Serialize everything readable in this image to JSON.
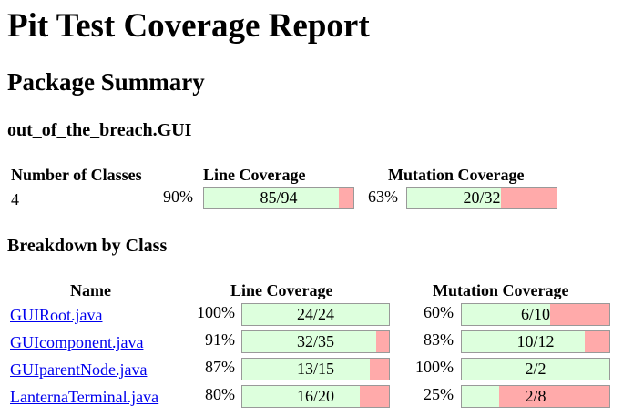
{
  "title": "Pit Test Coverage Report",
  "package_summary_heading": "Package Summary",
  "package_name": "out_of_the_breach.GUI",
  "summary": {
    "headers": {
      "classes": "Number of Classes",
      "line": "Line Coverage",
      "mutation": "Mutation Coverage"
    },
    "num_classes": "4",
    "line_pct": "90%",
    "line_label": "85/94",
    "line_fraction": 0.904,
    "mutation_pct": "63%",
    "mutation_label": "20/32",
    "mutation_fraction": 0.625
  },
  "breakdown_heading": "Breakdown by Class",
  "breakdown": {
    "headers": {
      "name": "Name",
      "line": "Line Coverage",
      "mutation": "Mutation Coverage"
    },
    "rows": [
      {
        "name": "GUIRoot.java",
        "line_pct": "100%",
        "line_label": "24/24",
        "line_fraction": 1.0,
        "mutation_pct": "60%",
        "mutation_label": "6/10",
        "mutation_fraction": 0.6
      },
      {
        "name": "GUIcomponent.java",
        "line_pct": "91%",
        "line_label": "32/35",
        "line_fraction": 0.914,
        "mutation_pct": "83%",
        "mutation_label": "10/12",
        "mutation_fraction": 0.833
      },
      {
        "name": "GUIparentNode.java",
        "line_pct": "87%",
        "line_label": "13/15",
        "line_fraction": 0.867,
        "mutation_pct": "100%",
        "mutation_label": "2/2",
        "mutation_fraction": 1.0
      },
      {
        "name": "LanternaTerminal.java",
        "line_pct": "80%",
        "line_label": "16/20",
        "line_fraction": 0.8,
        "mutation_pct": "25%",
        "mutation_label": "2/8",
        "mutation_fraction": 0.25
      }
    ]
  },
  "colors": {
    "covered": "#ddffdd",
    "uncovered": "#ffaaaa",
    "link": "#0000ee"
  }
}
